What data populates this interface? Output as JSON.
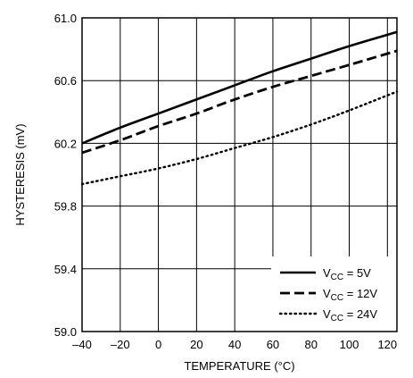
{
  "chart_data": {
    "type": "line",
    "title": "",
    "xlabel": "TEMPERATURE (°C)",
    "ylabel": "HYSTERESIS (mV)",
    "xlim": [
      -40,
      125
    ],
    "ylim": [
      59.0,
      61.0
    ],
    "x_ticks": [
      -40,
      -20,
      0,
      20,
      40,
      60,
      80,
      100,
      120
    ],
    "x_tick_labels": [
      "–40",
      "–20",
      "0",
      "20",
      "40",
      "60",
      "80",
      "100",
      "120"
    ],
    "y_ticks": [
      59.0,
      59.4,
      59.8,
      60.2,
      60.6,
      61.0
    ],
    "y_tick_labels": [
      "59.0",
      "59.4",
      "59.8",
      "60.2",
      "60.6",
      "61.0"
    ],
    "x_minor_gridlines": [
      -30,
      -10,
      10,
      30,
      50,
      70,
      90,
      110
    ],
    "y_minor_gridlines": [
      59.2,
      59.6,
      60.0,
      60.4,
      60.8
    ],
    "grid": true,
    "legend_position": "bottom-right",
    "x": [
      -40,
      -20,
      0,
      20,
      40,
      60,
      80,
      100,
      125
    ],
    "series": [
      {
        "name_main": "V",
        "name_sub": "CC",
        "name_rest": " = 5V",
        "style": "solid",
        "values": [
          60.2,
          60.3,
          60.39,
          60.48,
          60.57,
          60.66,
          60.74,
          60.82,
          60.91
        ]
      },
      {
        "name_main": "V",
        "name_sub": "CC",
        "name_rest": " = 12V",
        "style": "dashed",
        "values": [
          60.14,
          60.22,
          60.31,
          60.39,
          60.48,
          60.56,
          60.63,
          60.7,
          60.79
        ]
      },
      {
        "name_main": "V",
        "name_sub": "CC",
        "name_rest": " = 24V",
        "style": "dotted",
        "values": [
          59.94,
          59.99,
          60.04,
          60.1,
          60.17,
          60.24,
          60.32,
          60.41,
          60.53
        ]
      }
    ]
  }
}
